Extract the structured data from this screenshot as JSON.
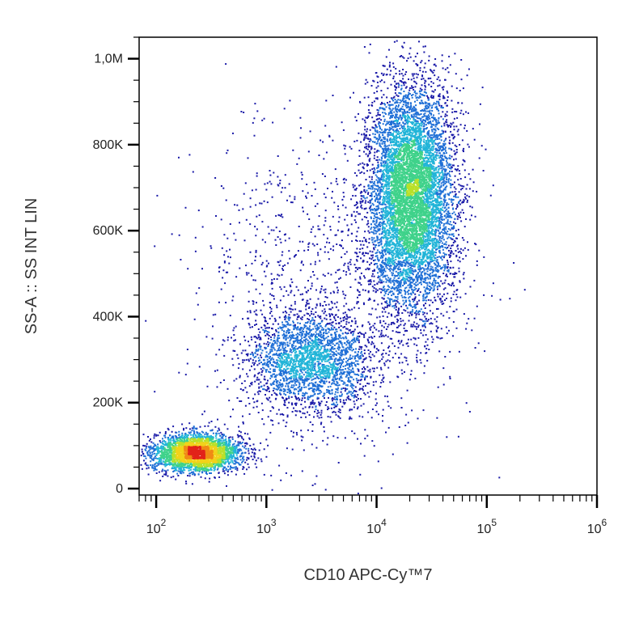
{
  "chart_data": {
    "type": "scatter",
    "subtype": "flow-cytometry-density-dot-plot",
    "xlabel": "CD10 APC-Cy™7",
    "ylabel": "SS-A :: SS INT LIN",
    "x_scale": "log",
    "y_scale": "linear",
    "xlim": [
      70,
      1000000
    ],
    "ylim": [
      -15000,
      1050000
    ],
    "x_ticks": [
      {
        "base": "10",
        "exp": "2",
        "value": 100
      },
      {
        "base": "10",
        "exp": "3",
        "value": 1000
      },
      {
        "base": "10",
        "exp": "4",
        "value": 10000
      },
      {
        "base": "10",
        "exp": "5",
        "value": 100000
      },
      {
        "base": "10",
        "exp": "6",
        "value": 1000000
      }
    ],
    "y_ticks": [
      {
        "label": "0",
        "value": 0
      },
      {
        "label": "200K",
        "value": 200000
      },
      {
        "label": "400K",
        "value": 400000
      },
      {
        "label": "600K",
        "value": 600000
      },
      {
        "label": "800K",
        "value": 800000
      },
      {
        "label": "1,0M",
        "value": 1000000
      }
    ],
    "grid": false,
    "legend": "none",
    "density_colormap": [
      "#1a1aa8",
      "#1f6fd6",
      "#22b5d8",
      "#3fd28a",
      "#b9e02a",
      "#f2d21a",
      "#f08a14",
      "#e2231a"
    ],
    "populations": [
      {
        "x_center": 230,
        "y_center": 85000,
        "log10_x_spread": 0.2,
        "y_spread": 22000,
        "relative_size": 0.22,
        "peak_density": "high"
      },
      {
        "x_center": 2500,
        "y_center": 300000,
        "log10_x_spread": 0.28,
        "y_spread": 55000,
        "relative_size": 0.17,
        "peak_density": "low"
      },
      {
        "x_center": 20000,
        "y_center": 680000,
        "log10_x_spread": 0.2,
        "y_spread": 130000,
        "relative_size": 0.53,
        "peak_density": "high"
      },
      {
        "x_center": 3000,
        "y_center": 450000,
        "log10_x_spread": 0.6,
        "y_spread": 200000,
        "relative_size": 0.08,
        "peak_density": "sparse"
      }
    ]
  }
}
